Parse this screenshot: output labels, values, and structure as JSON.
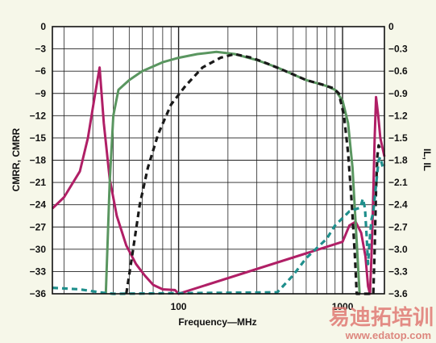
{
  "chart_data": {
    "type": "line",
    "xlabel": "Frequency—MHz",
    "ylabel_left": "CMRR, CMRR",
    "ylabel_right": "IL, IL",
    "x_scale": "log",
    "xlim": [
      17,
      1800
    ],
    "ylim_left": [
      -36,
      0
    ],
    "ylim_right": [
      -3.6,
      0
    ],
    "grid": true,
    "x_tick_labels": [
      "100",
      "1000"
    ],
    "y_left_ticks": [
      "0",
      "−3",
      "−6",
      "−9",
      "−12",
      "−15",
      "−18",
      "−21",
      "−24",
      "−27",
      "−30",
      "−33",
      "−36"
    ],
    "y_right_ticks": [
      "0",
      "−0.3",
      "−0.6",
      "−0.9",
      "−1.2",
      "−1.5",
      "−1.8",
      "−2.1",
      "−2.4",
      "−2.7",
      "−3.0",
      "−3.3",
      "−3.6"
    ],
    "series": [
      {
        "color": "#b01f66",
        "style": "solid",
        "axis": "left",
        "points": [
          [
            17,
            -24.5
          ],
          [
            20,
            -23
          ],
          [
            25,
            -19.5
          ],
          [
            28,
            -15
          ],
          [
            31,
            -9
          ],
          [
            33,
            -5.5
          ],
          [
            35,
            -13
          ],
          [
            38,
            -20.5
          ],
          [
            42,
            -25.5
          ],
          [
            48,
            -29.5
          ],
          [
            55,
            -32
          ],
          [
            62,
            -33.5
          ],
          [
            70,
            -34.8
          ],
          [
            80,
            -35.4
          ],
          [
            95,
            -35.5
          ],
          [
            100,
            -36
          ],
          [
            1000,
            -29
          ],
          [
            1100,
            -26.8
          ],
          [
            1200,
            -26.3
          ],
          [
            1300,
            -27.8
          ],
          [
            1380,
            -31
          ],
          [
            1430,
            -35
          ],
          [
            1470,
            -36
          ],
          [
            1500,
            -31
          ],
          [
            1530,
            -25
          ],
          [
            1570,
            -15
          ],
          [
            1600,
            -9.5
          ],
          [
            1650,
            -12
          ],
          [
            1700,
            -15
          ],
          [
            1800,
            -17.5
          ]
        ]
      },
      {
        "color": "#5a9660",
        "style": "solid",
        "axis": "right",
        "points": [
          [
            36,
            -3.6
          ],
          [
            38,
            -2.1
          ],
          [
            40,
            -1.2
          ],
          [
            43,
            -0.85
          ],
          [
            50,
            -0.72
          ],
          [
            60,
            -0.6
          ],
          [
            80,
            -0.48
          ],
          [
            100,
            -0.42
          ],
          [
            130,
            -0.37
          ],
          [
            170,
            -0.34
          ],
          [
            220,
            -0.37
          ],
          [
            300,
            -0.45
          ],
          [
            400,
            -0.55
          ],
          [
            600,
            -0.72
          ],
          [
            800,
            -0.8
          ],
          [
            900,
            -0.85
          ],
          [
            1000,
            -1.0
          ],
          [
            1080,
            -1.3
          ],
          [
            1150,
            -1.9
          ],
          [
            1220,
            -2.9
          ],
          [
            1270,
            -3.6
          ]
        ]
      },
      {
        "color": "#1a1a1a",
        "style": "dashed",
        "axis": "right",
        "points": [
          [
            48,
            -3.6
          ],
          [
            52,
            -3.1
          ],
          [
            58,
            -2.4
          ],
          [
            65,
            -1.9
          ],
          [
            75,
            -1.45
          ],
          [
            90,
            -1.05
          ],
          [
            110,
            -0.8
          ],
          [
            140,
            -0.55
          ],
          [
            180,
            -0.42
          ],
          [
            220,
            -0.37
          ],
          [
            280,
            -0.42
          ],
          [
            350,
            -0.5
          ],
          [
            450,
            -0.6
          ],
          [
            600,
            -0.72
          ],
          [
            750,
            -0.78
          ],
          [
            880,
            -0.83
          ],
          [
            950,
            -0.9
          ],
          [
            1020,
            -1.2
          ],
          [
            1080,
            -1.7
          ],
          [
            1140,
            -2.4
          ],
          [
            1190,
            -3.1
          ],
          [
            1220,
            -3.6
          ],
          [
            1540,
            -3.6
          ],
          [
            1570,
            -3.0
          ],
          [
            1600,
            -2.2
          ],
          [
            1630,
            -1.75
          ],
          [
            1660,
            -1.6
          ],
          [
            1700,
            -1.65
          ]
        ]
      },
      {
        "color": "#1f8f8c",
        "style": "dashed",
        "axis": "left",
        "points": [
          [
            17,
            -35.2
          ],
          [
            25,
            -35.4
          ],
          [
            33,
            -35.8
          ],
          [
            40,
            -36
          ],
          [
            400,
            -35.8
          ],
          [
            500,
            -33.5
          ],
          [
            600,
            -31.2
          ],
          [
            700,
            -29.8
          ],
          [
            800,
            -28.6
          ],
          [
            900,
            -26.8
          ],
          [
            1000,
            -25.8
          ],
          [
            1100,
            -24.9
          ],
          [
            1200,
            -24.6
          ],
          [
            1280,
            -24.4
          ],
          [
            1330,
            -23.2
          ],
          [
            1370,
            -24.5
          ],
          [
            1400,
            -28
          ],
          [
            1430,
            -32
          ],
          [
            1460,
            -29
          ],
          [
            1500,
            -26
          ],
          [
            1540,
            -25
          ],
          [
            1580,
            -22.5
          ],
          [
            1620,
            -20.2
          ],
          [
            1660,
            -18
          ],
          [
            1700,
            -17.6
          ],
          [
            1760,
            -19
          ],
          [
            1800,
            -18.6
          ]
        ]
      }
    ]
  },
  "watermark": {
    "chinese": "易迪拓培训",
    "url": "www.edatop.com"
  }
}
